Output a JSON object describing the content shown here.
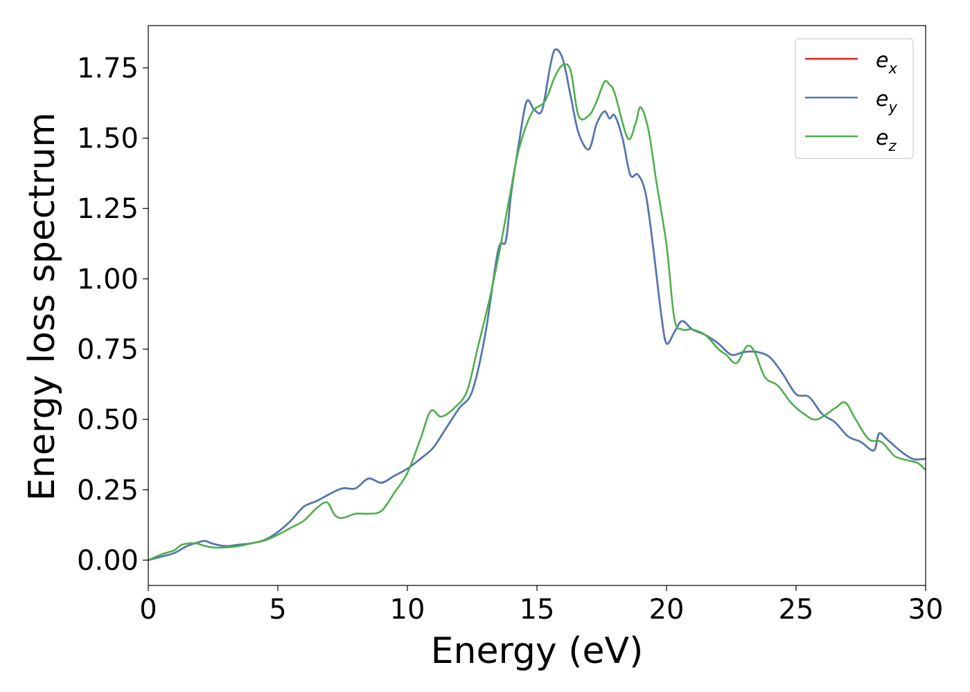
{
  "chart_data": {
    "type": "line",
    "xlabel": "Energy (eV)",
    "ylabel": "Energy loss spectrum",
    "xlim": [
      0,
      30
    ],
    "ylim": [
      -0.09,
      1.9
    ],
    "xticks": [
      0,
      5,
      10,
      15,
      20,
      25,
      30
    ],
    "yticks": [
      0.0,
      0.25,
      0.5,
      0.75,
      1.0,
      1.25,
      1.5,
      1.75
    ],
    "ytick_labels": [
      "0.00",
      "0.25",
      "0.50",
      "0.75",
      "1.00",
      "1.25",
      "1.50",
      "1.75"
    ],
    "xtick_labels": [
      "0",
      "5",
      "10",
      "15",
      "20",
      "25",
      "30"
    ],
    "grid": false,
    "legend_position": "top-right",
    "series": [
      {
        "name": "e_x",
        "legend_base": "e",
        "legend_sub": "x",
        "color": "#e41a1c",
        "x": [
          0,
          0.5,
          1,
          1.5,
          2,
          2.2,
          2.5,
          3,
          3.5,
          4,
          4.5,
          5,
          5.5,
          6,
          6.5,
          7,
          7.5,
          8,
          8.5,
          9,
          9.5,
          10,
          10.5,
          11,
          11.5,
          12,
          12.5,
          13,
          13.5,
          13.8,
          14,
          14.3,
          14.6,
          14.9,
          15.2,
          15.5,
          15.7,
          16,
          16.3,
          16.6,
          17,
          17.3,
          17.6,
          17.8,
          18,
          18.3,
          18.6,
          18.9,
          19.2,
          19.5,
          19.8,
          20,
          20.3,
          20.6,
          21,
          21.5,
          22,
          22.5,
          23,
          23.5,
          24,
          24.5,
          25,
          25.5,
          26,
          26.5,
          27,
          27.5,
          28,
          28.2,
          28.5,
          29,
          29.5,
          30
        ],
        "y": [
          0,
          0.012,
          0.025,
          0.05,
          0.065,
          0.068,
          0.058,
          0.05,
          0.055,
          0.06,
          0.072,
          0.1,
          0.14,
          0.19,
          0.21,
          0.235,
          0.255,
          0.255,
          0.29,
          0.275,
          0.3,
          0.325,
          0.36,
          0.4,
          0.47,
          0.54,
          0.6,
          0.8,
          1.1,
          1.135,
          1.3,
          1.48,
          1.63,
          1.6,
          1.6,
          1.75,
          1.815,
          1.78,
          1.65,
          1.52,
          1.46,
          1.55,
          1.595,
          1.57,
          1.58,
          1.5,
          1.37,
          1.37,
          1.3,
          1.1,
          0.87,
          0.77,
          0.81,
          0.85,
          0.82,
          0.8,
          0.77,
          0.73,
          0.74,
          0.74,
          0.72,
          0.66,
          0.59,
          0.58,
          0.52,
          0.49,
          0.44,
          0.42,
          0.39,
          0.45,
          0.43,
          0.39,
          0.36,
          0.36
        ]
      },
      {
        "name": "e_y",
        "legend_base": "e",
        "legend_sub": "y",
        "color": "#4a7bb5",
        "x": [
          0,
          0.5,
          1,
          1.5,
          2,
          2.2,
          2.5,
          3,
          3.5,
          4,
          4.5,
          5,
          5.5,
          6,
          6.5,
          7,
          7.5,
          8,
          8.5,
          9,
          9.5,
          10,
          10.5,
          11,
          11.5,
          12,
          12.5,
          13,
          13.5,
          13.8,
          14,
          14.3,
          14.6,
          14.9,
          15.2,
          15.5,
          15.7,
          16,
          16.3,
          16.6,
          17,
          17.3,
          17.6,
          17.8,
          18,
          18.3,
          18.6,
          18.9,
          19.2,
          19.5,
          19.8,
          20,
          20.3,
          20.6,
          21,
          21.5,
          22,
          22.5,
          23,
          23.5,
          24,
          24.5,
          25,
          25.5,
          26,
          26.5,
          27,
          27.5,
          28,
          28.2,
          28.5,
          29,
          29.5,
          30
        ],
        "y": [
          0,
          0.012,
          0.025,
          0.05,
          0.065,
          0.068,
          0.058,
          0.05,
          0.055,
          0.06,
          0.072,
          0.1,
          0.14,
          0.19,
          0.21,
          0.235,
          0.255,
          0.255,
          0.29,
          0.275,
          0.3,
          0.325,
          0.36,
          0.4,
          0.47,
          0.54,
          0.6,
          0.8,
          1.1,
          1.135,
          1.3,
          1.48,
          1.63,
          1.6,
          1.6,
          1.75,
          1.815,
          1.78,
          1.65,
          1.52,
          1.46,
          1.55,
          1.595,
          1.57,
          1.58,
          1.5,
          1.37,
          1.37,
          1.3,
          1.1,
          0.87,
          0.77,
          0.81,
          0.85,
          0.82,
          0.8,
          0.77,
          0.73,
          0.74,
          0.74,
          0.72,
          0.66,
          0.59,
          0.58,
          0.52,
          0.49,
          0.44,
          0.42,
          0.39,
          0.45,
          0.43,
          0.39,
          0.36,
          0.36
        ]
      },
      {
        "name": "e_z",
        "legend_base": "e",
        "legend_sub": "z",
        "color": "#4daf4a",
        "x": [
          0,
          0.5,
          1,
          1.3,
          1.8,
          2.2,
          2.5,
          3,
          3.5,
          4,
          4.5,
          5,
          5.5,
          6,
          6.5,
          6.9,
          7.2,
          7.5,
          8,
          8.5,
          9,
          9.5,
          10,
          10.5,
          10.9,
          11.3,
          11.8,
          12.3,
          12.7,
          13.2,
          13.6,
          14,
          14.3,
          14.8,
          15.3,
          15.7,
          16,
          16.3,
          16.6,
          17,
          17.3,
          17.6,
          17.8,
          18,
          18.5,
          18.8,
          19,
          19.3,
          19.6,
          20,
          20.3,
          20.6,
          21,
          21.5,
          22,
          22.3,
          22.7,
          23.1,
          23.4,
          23.8,
          24.3,
          24.8,
          25.3,
          25.8,
          26.5,
          26.9,
          27.3,
          27.8,
          28.3,
          28.8,
          29.3,
          29.7,
          30
        ],
        "y": [
          0,
          0.02,
          0.035,
          0.055,
          0.06,
          0.05,
          0.045,
          0.045,
          0.05,
          0.06,
          0.07,
          0.09,
          0.115,
          0.14,
          0.185,
          0.205,
          0.16,
          0.15,
          0.165,
          0.165,
          0.175,
          0.24,
          0.31,
          0.43,
          0.53,
          0.51,
          0.54,
          0.6,
          0.75,
          0.94,
          1.12,
          1.32,
          1.46,
          1.59,
          1.63,
          1.72,
          1.76,
          1.74,
          1.58,
          1.58,
          1.63,
          1.7,
          1.69,
          1.66,
          1.5,
          1.55,
          1.61,
          1.53,
          1.35,
          1.12,
          0.86,
          0.82,
          0.82,
          0.8,
          0.75,
          0.73,
          0.7,
          0.76,
          0.74,
          0.65,
          0.62,
          0.56,
          0.52,
          0.5,
          0.54,
          0.56,
          0.5,
          0.43,
          0.42,
          0.37,
          0.355,
          0.345,
          0.32
        ]
      }
    ]
  }
}
